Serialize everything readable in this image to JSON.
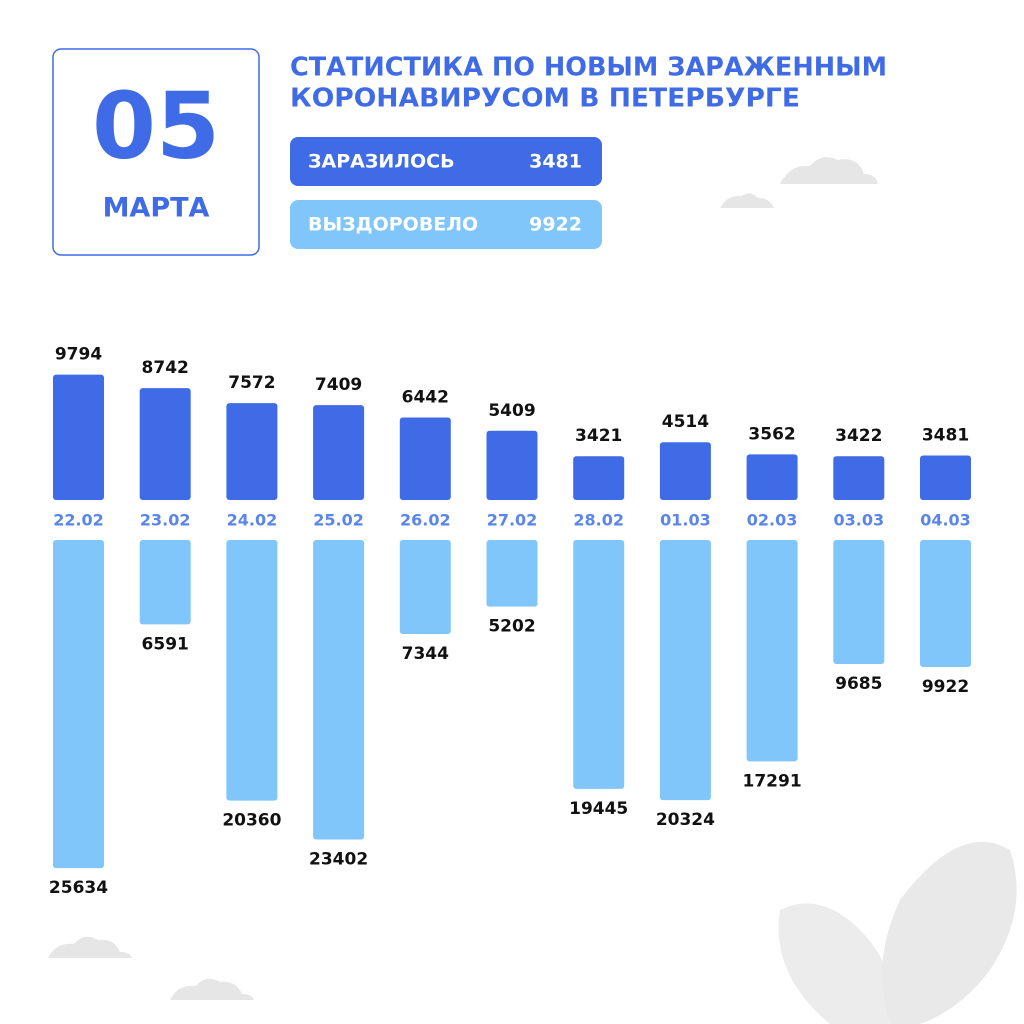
{
  "header": {
    "day": "05",
    "month": "МАРТА",
    "title": [
      "СТАТИСТИКА ПО НОВЫМ ЗАРАЖЕННЫМ",
      "КОРОНАВИРУСОМ В ПЕТЕРБУРГЕ"
    ],
    "stats": [
      {
        "label": "ЗАРАЗИЛОСЬ",
        "value": 3481,
        "color": "#3f6be6"
      },
      {
        "label": "ВЫЗДОРОВЕЛО",
        "value": 9922,
        "color": "#80c6fb"
      }
    ]
  },
  "chart_data": {
    "type": "diverging-bar",
    "categories": [
      "22.02",
      "23.02",
      "24.02",
      "25.02",
      "26.02",
      "27.02",
      "28.02",
      "01.03",
      "02.03",
      "03.03",
      "04.03"
    ],
    "series": [
      {
        "color": "#3f6be6",
        "values": [
          9794,
          8742,
          7572,
          7409,
          6442,
          5409,
          3421,
          4514,
          3562,
          3422,
          3481
        ]
      },
      {
        "color": "#80c6fb",
        "values": [
          25634,
          6591,
          20360,
          23402,
          7344,
          5202,
          19445,
          20324,
          17291,
          9685,
          9922
        ]
      }
    ]
  }
}
